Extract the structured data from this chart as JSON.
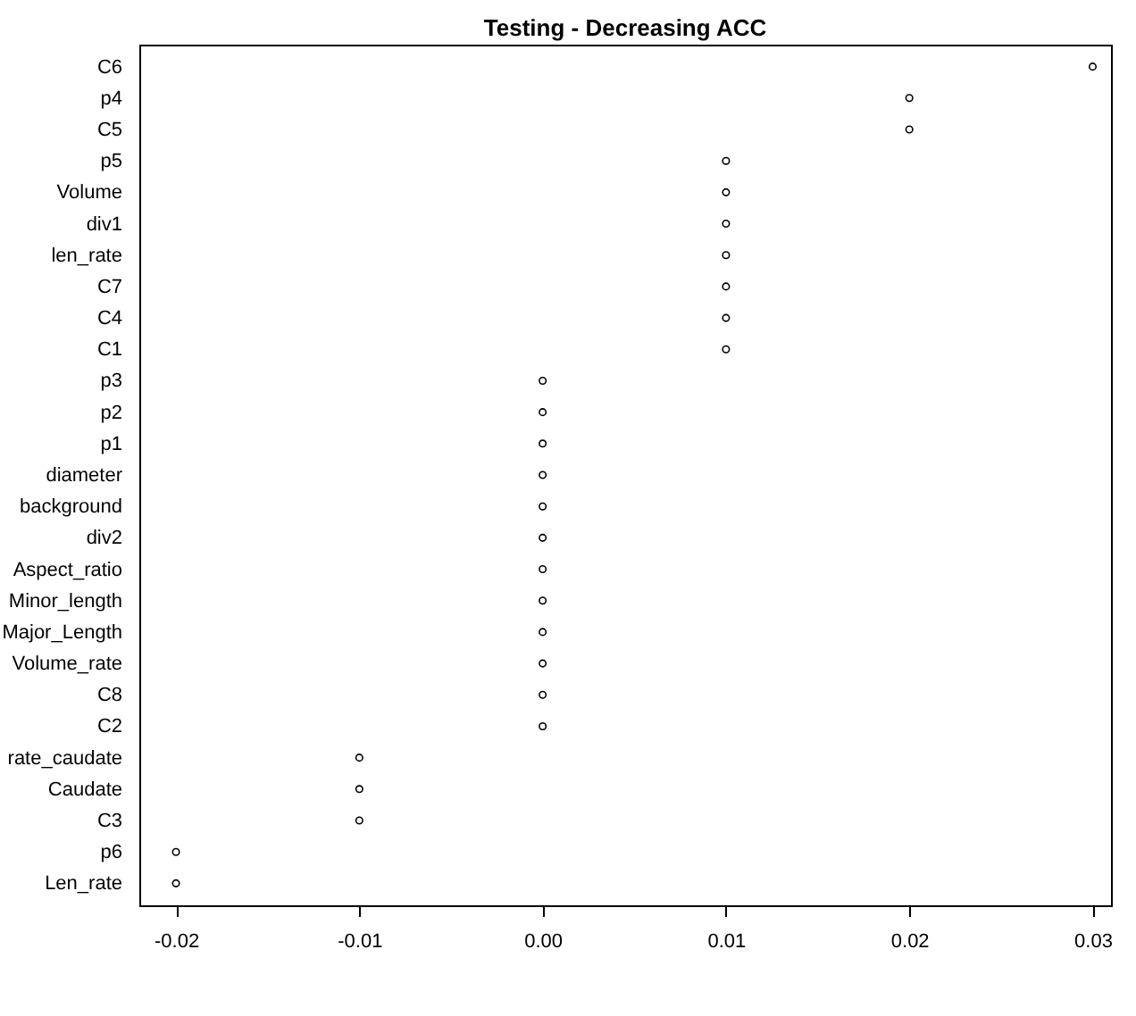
{
  "chart_data": {
    "type": "scatter",
    "title": "Testing - Decreasing ACC",
    "categories": [
      "C6",
      "p4",
      "C5",
      "p5",
      "Volume",
      "div1",
      "len_rate",
      "C7",
      "C4",
      "C1",
      "p3",
      "p2",
      "p1",
      "diameter",
      "background",
      "div2",
      "Aspect_ratio",
      "Minor_length",
      "Major_Length",
      "Volume_rate",
      "C8",
      "C2",
      "rate_caudate",
      "Caudate",
      "C3",
      "p6",
      "Len_rate"
    ],
    "orientation": "horizontal",
    "values": [
      0.03,
      0.02,
      0.02,
      0.01,
      0.01,
      0.01,
      0.01,
      0.01,
      0.01,
      0.01,
      0,
      0,
      0,
      0,
      0,
      0,
      0,
      0,
      0,
      0,
      0,
      0,
      -0.01,
      -0.01,
      -0.01,
      -0.02,
      -0.02
    ],
    "color": "#000000",
    "marker": "circle",
    "grid": false,
    "xlim": [
      -0.022,
      0.031
    ],
    "xticks": [
      {
        "value": -0.02,
        "label": "-0.02"
      },
      {
        "value": -0.01,
        "label": "-0.01"
      },
      {
        "value": 0,
        "label": "0.00"
      },
      {
        "value": 0.01,
        "label": "0.01"
      },
      {
        "value": 0.02,
        "label": "0.02"
      },
      {
        "value": 0.03,
        "label": "0.03"
      }
    ]
  }
}
